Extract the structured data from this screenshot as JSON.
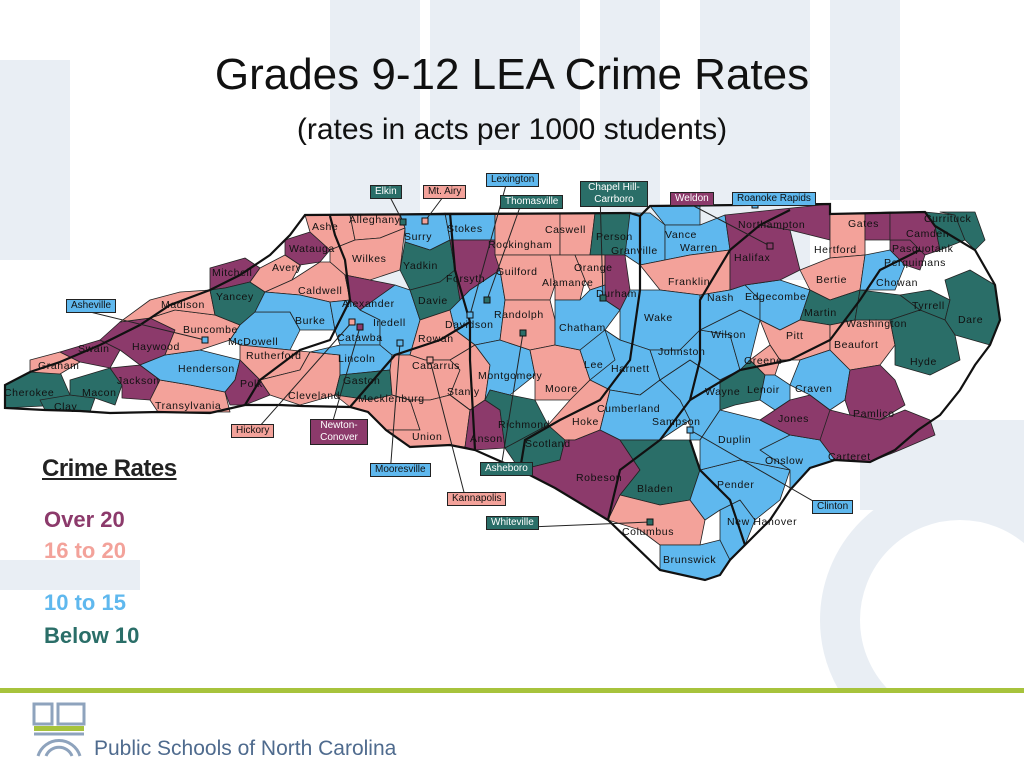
{
  "title": "Grades 9-12 LEA Crime Rates",
  "subtitle": "(rates in acts per 1000 students)",
  "colors": {
    "over20": "#8c3a6b",
    "r16to20": "#f3a29a",
    "r10to15": "#5fb8ee",
    "below10": "#2a6e68",
    "border": "#111111"
  },
  "legend": {
    "title": "Crime Rates",
    "over20": "Over 20",
    "r16to20": "16 to 20",
    "r10to15": "10 to 15",
    "below10": "Below 10"
  },
  "counties": [
    {
      "name": "Cherokee",
      "rate": "below10"
    },
    {
      "name": "Clay",
      "rate": "below10"
    },
    {
      "name": "Graham",
      "rate": "r16to20"
    },
    {
      "name": "Swain",
      "rate": "over20"
    },
    {
      "name": "Macon",
      "rate": "below10"
    },
    {
      "name": "Jackson",
      "rate": "over20"
    },
    {
      "name": "Haywood",
      "rate": "over20"
    },
    {
      "name": "Transylvania",
      "rate": "r16to20"
    },
    {
      "name": "Henderson",
      "rate": "r10to15"
    },
    {
      "name": "Buncombe",
      "rate": "r16to20"
    },
    {
      "name": "Madison",
      "rate": "r16to20"
    },
    {
      "name": "Mitchell",
      "rate": "over20"
    },
    {
      "name": "Yancey",
      "rate": "below10"
    },
    {
      "name": "McDowell",
      "rate": "r10to15"
    },
    {
      "name": "Rutherford",
      "rate": "r16to20"
    },
    {
      "name": "Polk",
      "rate": "over20"
    },
    {
      "name": "Avery",
      "rate": "r16to20"
    },
    {
      "name": "Watauga",
      "rate": "over20"
    },
    {
      "name": "Ashe",
      "rate": "r16to20"
    },
    {
      "name": "Alleghany",
      "rate": "r16to20"
    },
    {
      "name": "Wilkes",
      "rate": "r16to20"
    },
    {
      "name": "Caldwell",
      "rate": "r16to20"
    },
    {
      "name": "Burke",
      "rate": "r10to15"
    },
    {
      "name": "Alexander",
      "rate": "over20"
    },
    {
      "name": "Catawba",
      "rate": "r10to15"
    },
    {
      "name": "Cleveland",
      "rate": "r16to20"
    },
    {
      "name": "Lincoln",
      "rate": "r10to15"
    },
    {
      "name": "Gaston",
      "rate": "below10"
    },
    {
      "name": "Iredell",
      "rate": "r10to15"
    },
    {
      "name": "Mecklenburg",
      "rate": "r16to20"
    },
    {
      "name": "Surry",
      "rate": "r10to15"
    },
    {
      "name": "Yadkin",
      "rate": "below10"
    },
    {
      "name": "Davie",
      "rate": "below10"
    },
    {
      "name": "Stokes",
      "rate": "r10to15"
    },
    {
      "name": "Forsyth",
      "rate": "over20"
    },
    {
      "name": "Davidson",
      "rate": "r10to15"
    },
    {
      "name": "Rowan",
      "rate": "r16to20"
    },
    {
      "name": "Cabarrus",
      "rate": "r16to20"
    },
    {
      "name": "Stanly",
      "rate": "r16to20"
    },
    {
      "name": "Union",
      "rate": "r16to20"
    },
    {
      "name": "Anson",
      "rate": "over20"
    },
    {
      "name": "Montgomery",
      "rate": "r10to15"
    },
    {
      "name": "Richmond",
      "rate": "below10"
    },
    {
      "name": "Scotland",
      "rate": "below10"
    },
    {
      "name": "Rockingham",
      "rate": "r16to20"
    },
    {
      "name": "Guilford",
      "rate": "r16to20"
    },
    {
      "name": "Randolph",
      "rate": "r16to20"
    },
    {
      "name": "Moore",
      "rate": "r16to20"
    },
    {
      "name": "Caswell",
      "rate": "r16to20"
    },
    {
      "name": "Alamance",
      "rate": "r16to20"
    },
    {
      "name": "Person",
      "rate": "below10"
    },
    {
      "name": "Orange",
      "rate": "r16to20"
    },
    {
      "name": "Durham",
      "rate": "over20"
    },
    {
      "name": "Chatham",
      "rate": "r10to15"
    },
    {
      "name": "Lee",
      "rate": "r10to15"
    },
    {
      "name": "Granville",
      "rate": "r10to15"
    },
    {
      "name": "Vance",
      "rate": "r10to15"
    },
    {
      "name": "Warren",
      "rate": "r10to15"
    },
    {
      "name": "Franklin",
      "rate": "r16to20"
    },
    {
      "name": "Wake",
      "rate": "r10to15"
    },
    {
      "name": "Harnett",
      "rate": "r10to15"
    },
    {
      "name": "Hoke",
      "rate": "r16to20"
    },
    {
      "name": "Cumberland",
      "rate": "r10to15"
    },
    {
      "name": "Robeson",
      "rate": "over20"
    },
    {
      "name": "Bladen",
      "rate": "below10"
    },
    {
      "name": "Columbus",
      "rate": "r16to20"
    },
    {
      "name": "Brunswick",
      "rate": "r10to15"
    },
    {
      "name": "New Hanover",
      "rate": "r10to15"
    },
    {
      "name": "Pender",
      "rate": "r10to15"
    },
    {
      "name": "Sampson",
      "rate": "r10to15"
    },
    {
      "name": "Duplin",
      "rate": "r10to15"
    },
    {
      "name": "Onslow",
      "rate": "r10to15"
    },
    {
      "name": "Johnston",
      "rate": "r10to15"
    },
    {
      "name": "Wayne",
      "rate": "below10"
    },
    {
      "name": "Wilson",
      "rate": "r10to15"
    },
    {
      "name": "Nash",
      "rate": "r10to15"
    },
    {
      "name": "Edgecombe",
      "rate": "r10to15"
    },
    {
      "name": "Halifax",
      "rate": "over20"
    },
    {
      "name": "Northampton",
      "rate": "over20"
    },
    {
      "name": "Hertford",
      "rate": "r16to20"
    },
    {
      "name": "Gates",
      "rate": "over20"
    },
    {
      "name": "Bertie",
      "rate": "r16to20"
    },
    {
      "name": "Martin",
      "rate": "below10"
    },
    {
      "name": "Pitt",
      "rate": "r16to20"
    },
    {
      "name": "Greene",
      "rate": "r16to20"
    },
    {
      "name": "Lenoir",
      "rate": "r10to15"
    },
    {
      "name": "Jones",
      "rate": "over20"
    },
    {
      "name": "Craven",
      "rate": "r10to15"
    },
    {
      "name": "Beaufort",
      "rate": "r16to20"
    },
    {
      "name": "Washington",
      "rate": "below10"
    },
    {
      "name": "Tyrrell",
      "rate": "below10"
    },
    {
      "name": "Dare",
      "rate": "below10"
    },
    {
      "name": "Hyde",
      "rate": "below10"
    },
    {
      "name": "Pamlico",
      "rate": "over20"
    },
    {
      "name": "Carteret",
      "rate": "over20"
    },
    {
      "name": "Chowan",
      "rate": "r10to15"
    },
    {
      "name": "Perquimans",
      "rate": "over20"
    },
    {
      "name": "Pasquotank",
      "rate": "over20"
    },
    {
      "name": "Camden",
      "rate": "below10"
    },
    {
      "name": "Currituck",
      "rate": "below10"
    }
  ],
  "cities": [
    {
      "name": "Elkin",
      "rate": "below10"
    },
    {
      "name": "Mt. Airy",
      "rate": "r16to20"
    },
    {
      "name": "Lexington",
      "rate": "r10to15"
    },
    {
      "name": "Thomasville",
      "rate": "below10"
    },
    {
      "name": "Chapel Hill-Carrboro",
      "rate": "below10"
    },
    {
      "name": "Weldon",
      "rate": "over20"
    },
    {
      "name": "Roanoke Rapids",
      "rate": "r10to15"
    },
    {
      "name": "Asheville",
      "rate": "r10to15"
    },
    {
      "name": "Hickory",
      "rate": "r16to20"
    },
    {
      "name": "Newton-Conover",
      "rate": "over20"
    },
    {
      "name": "Mooresville",
      "rate": "r10to15"
    },
    {
      "name": "Asheboro",
      "rate": "below10"
    },
    {
      "name": "Kannapolis",
      "rate": "r16to20"
    },
    {
      "name": "Whiteville",
      "rate": "below10"
    },
    {
      "name": "Clinton",
      "rate": "r10to15"
    }
  ],
  "footer": {
    "org": "Public Schools of North Carolina",
    "logo_icon": "dpi-logo-icon"
  }
}
